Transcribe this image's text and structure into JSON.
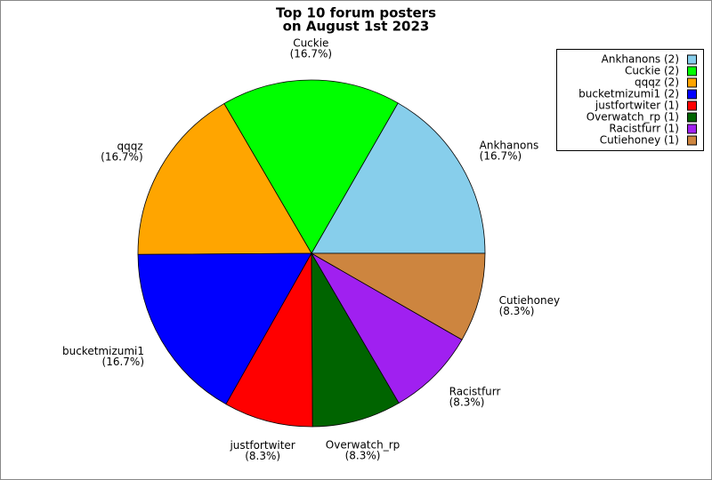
{
  "chart_data": {
    "type": "pie",
    "title": [
      "Top 10 forum posters",
      "on August 1st 2023"
    ],
    "categories": [
      "Ankhanons",
      "Cuckie",
      "qqqz",
      "bucketmizumi1",
      "justfortwiter",
      "Overwatch_rp",
      "Racistfurr",
      "Cutiehoney"
    ],
    "values": [
      16.7,
      16.7,
      16.7,
      16.7,
      8.3,
      8.3,
      8.3,
      8.3
    ],
    "value_labels": [
      "(16.7%)",
      "(16.7%)",
      "(16.7%)",
      "(16.7%)",
      "(8.3%)",
      "(8.3%)",
      "(8.3%)",
      "(8.3%)"
    ],
    "colors": [
      "#87ceeb",
      "#00ff00",
      "#ffa500",
      "#0000ff",
      "#ff0000",
      "#006400",
      "#a020f0",
      "#cd853f"
    ],
    "legend_labels": [
      "Ankhanons (2)",
      "Cuckie (2)",
      "qqqz (2)",
      "bucketmizumi1 (2)",
      "justfortwiter (1)",
      "Overwatch_rp (1)",
      "Racistfurr (1)",
      "Cutiehoney (1)"
    ],
    "legend_position": "upper right"
  }
}
